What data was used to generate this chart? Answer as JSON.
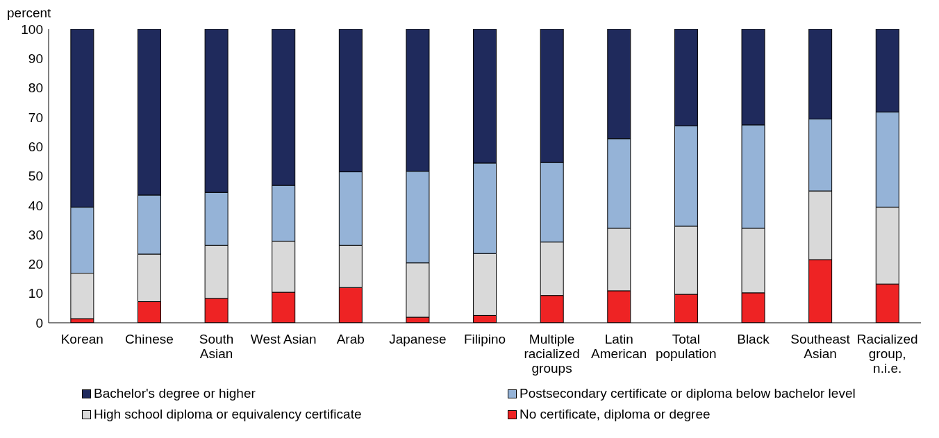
{
  "chart_data": {
    "type": "bar",
    "stacked": true,
    "ylabel": "percent",
    "categories": [
      "Korean",
      "Chinese",
      "South Asian",
      "West Asian",
      "Arab",
      "Japanese",
      "Filipino",
      "Multiple racialized groups",
      "Latin American",
      "Total population",
      "Black",
      "Southeast Asian",
      "Racialized group, n.i.e."
    ],
    "series": [
      {
        "name": "No certificate, diploma or degree",
        "color": "#ee2324",
        "values": [
          1.4,
          7.2,
          8.3,
          10.4,
          12.0,
          1.9,
          2.5,
          9.3,
          10.9,
          9.7,
          10.2,
          21.5,
          13.2
        ]
      },
      {
        "name": "High school diploma or equivalency certificate",
        "color": "#d9d9d9",
        "values": [
          15.5,
          16.2,
          18.1,
          17.4,
          14.4,
          18.5,
          21.1,
          18.2,
          21.3,
          23.2,
          22.0,
          23.4,
          26.2
        ]
      },
      {
        "name": "Postsecondary certificate or diploma below bachelor level",
        "color": "#95b3d7",
        "values": [
          22.5,
          20.1,
          18.0,
          19.0,
          25.0,
          31.2,
          30.8,
          27.1,
          30.5,
          34.2,
          35.2,
          24.5,
          32.4
        ]
      },
      {
        "name": "Bachelor's degree or higher",
        "color": "#1f2a5c",
        "values": [
          60.6,
          56.5,
          55.6,
          53.2,
          48.6,
          48.4,
          45.6,
          45.4,
          37.3,
          32.9,
          32.6,
          30.6,
          28.2
        ]
      }
    ],
    "ylim": [
      0,
      100
    ],
    "yticks": [
      0,
      10,
      20,
      30,
      40,
      50,
      60,
      70,
      80,
      90,
      100
    ],
    "grid": false,
    "legend": "bottom"
  }
}
